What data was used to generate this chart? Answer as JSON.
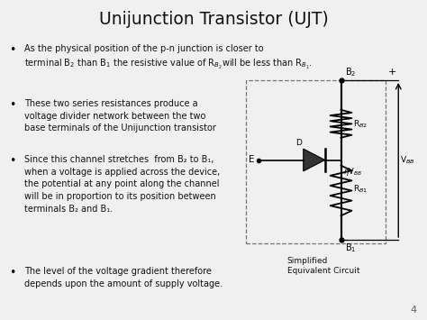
{
  "title": "Unijunction Transistor (UJT)",
  "background_color": "#f0f0f0",
  "text_color": "#1a1a1a",
  "bullet1_line1": "As the physical position of the p-n junction is closer to",
  "bullet1_line2": "terminal B₂ than B₁ the resistive value of R₂ will be less than R₁.",
  "bullet2": "These two series resistances produce a\nvoltage divider network between the two\nbase terminals of the Unijunction transistor",
  "bullet3": "Since this channel stretches  from B₂ to B₁,\nwhen a voltage is applied across the device,\nthe potential at any point along the channel\nwill be in proportion to its position between\nterminals B₂ and B₁.",
  "bullet4": "The level of the voltage gradient therefore\ndepends upon the amount of supply voltage.",
  "page_number": "4",
  "caption_line1": "Simplified",
  "caption_line2": "Equivalent Circuit"
}
